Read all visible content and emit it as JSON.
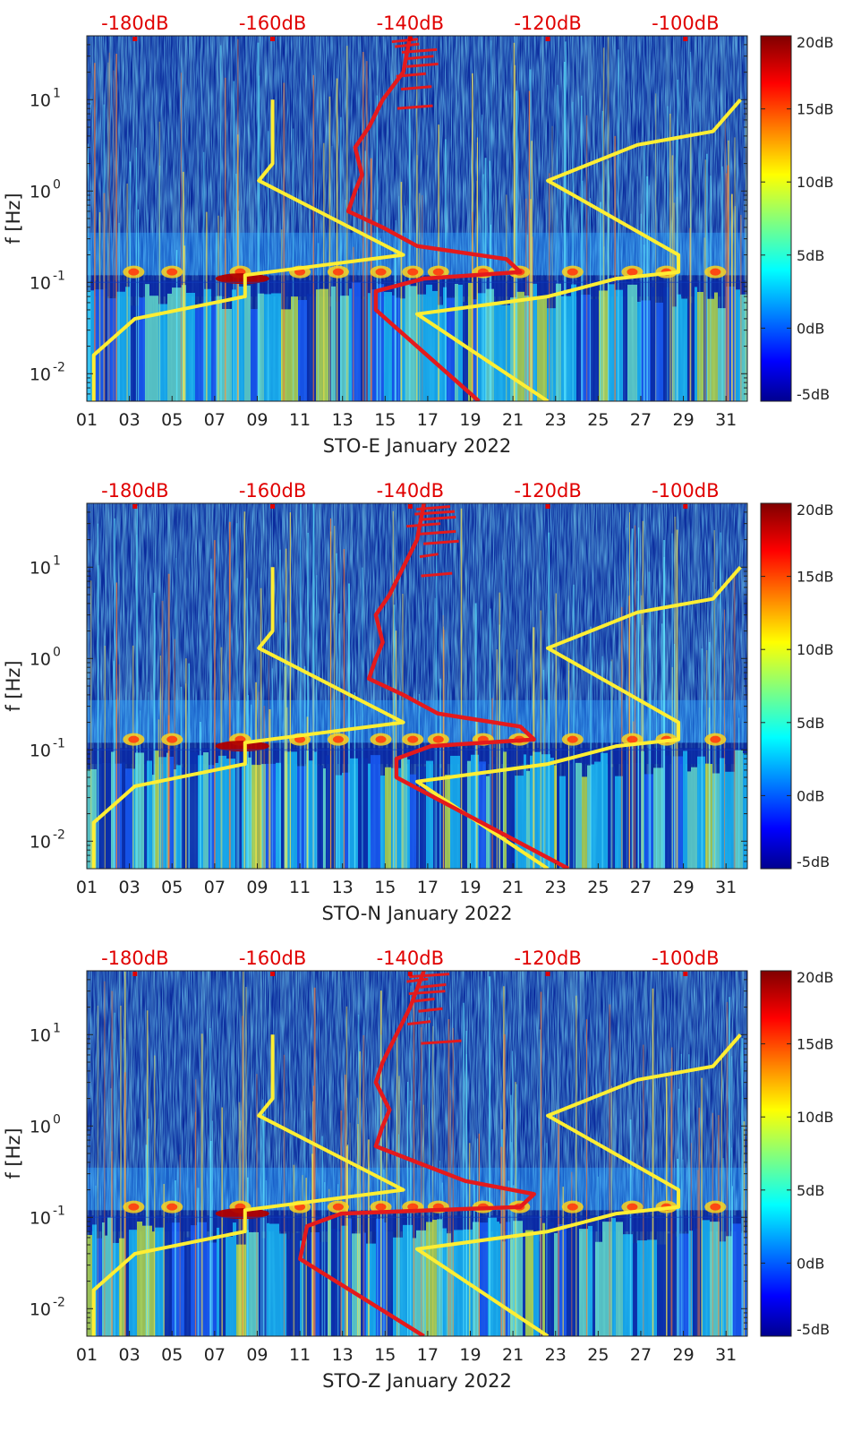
{
  "figure": {
    "ylabel": "f [Hz]",
    "colors": {
      "psd_curve": "#e41a1c",
      "noise_model": "#ffee33",
      "db_axis": "#e00000",
      "background": "#0a2a9c"
    }
  },
  "chart_data": [
    {
      "type": "heatmap",
      "title": "STO-E January 2022",
      "xlabel": "STO-E January 2022",
      "ylabel": "f [Hz]",
      "x_ticks": [
        "01",
        "03",
        "05",
        "07",
        "09",
        "11",
        "13",
        "15",
        "17",
        "19",
        "21",
        "23",
        "25",
        "27",
        "29",
        "31"
      ],
      "xlim": [
        1,
        32
      ],
      "ylim": [
        0.005,
        50
      ],
      "y_ticks": [
        {
          "value": 0.01,
          "base": "10",
          "exp": "-2"
        },
        {
          "value": 0.1,
          "base": "10",
          "exp": "-1"
        },
        {
          "value": 1,
          "base": "10",
          "exp": "0"
        },
        {
          "value": 10,
          "base": "10",
          "exp": "1"
        }
      ],
      "top_axis": {
        "ticks": [
          "-180dB",
          "-160dB",
          "-140dB",
          "-120dB",
          "-100dB"
        ],
        "values": [
          -180,
          -160,
          -140,
          -120,
          -100
        ],
        "range": [
          -187,
          -91
        ]
      },
      "colorbar": {
        "ticks": [
          "-5dB",
          "0dB",
          "5dB",
          "10dB",
          "15dB",
          "20dB"
        ],
        "values": [
          -5,
          0,
          5,
          10,
          15,
          20
        ]
      },
      "psd_curve": {
        "db": [
          -140,
          -141,
          -144,
          -146,
          -148,
          -147,
          -148,
          -149,
          -144,
          -139,
          -126,
          -124,
          -138,
          -145,
          -145,
          -130
        ],
        "f": [
          50,
          20,
          10,
          5,
          3,
          1.5,
          1,
          0.6,
          0.4,
          0.25,
          0.18,
          0.13,
          0.11,
          0.08,
          0.05,
          0.005
        ]
      },
      "noise_low": {
        "db": [
          -160,
          -160,
          -162,
          -141,
          -164,
          -164,
          -180,
          -186,
          -186
        ],
        "f": [
          10,
          2,
          1.3,
          0.2,
          0.12,
          0.07,
          0.04,
          0.016,
          0.005
        ]
      },
      "noise_high": {
        "db": [
          -92,
          -96,
          -107,
          -120,
          -101,
          -101,
          -110,
          -120,
          -139,
          -120
        ],
        "f": [
          10,
          4.5,
          3.2,
          1.3,
          0.2,
          0.13,
          0.11,
          0.07,
          0.045,
          0.005
        ]
      }
    },
    {
      "type": "heatmap",
      "title": "STO-N January 2022",
      "xlabel": "STO-N January 2022",
      "ylabel": "f [Hz]",
      "x_ticks": [
        "01",
        "03",
        "05",
        "07",
        "09",
        "11",
        "13",
        "15",
        "17",
        "19",
        "21",
        "23",
        "25",
        "27",
        "29",
        "31"
      ],
      "xlim": [
        1,
        32
      ],
      "ylim": [
        0.005,
        50
      ],
      "y_ticks": [
        {
          "value": 0.01,
          "base": "10",
          "exp": "-2"
        },
        {
          "value": 0.1,
          "base": "10",
          "exp": "-1"
        },
        {
          "value": 1,
          "base": "10",
          "exp": "0"
        },
        {
          "value": 10,
          "base": "10",
          "exp": "1"
        }
      ],
      "top_axis": {
        "ticks": [
          "-180dB",
          "-160dB",
          "-140dB",
          "-120dB",
          "-100dB"
        ],
        "values": [
          -180,
          -160,
          -140,
          -120,
          -100
        ],
        "range": [
          -187,
          -91
        ]
      },
      "colorbar": {
        "ticks": [
          "-5dB",
          "0dB",
          "5dB",
          "10dB",
          "15dB",
          "20dB"
        ],
        "values": [
          -5,
          0,
          5,
          10,
          15,
          20
        ]
      },
      "psd_curve": {
        "db": [
          -138,
          -139,
          -141,
          -143,
          -145,
          -144,
          -145,
          -146,
          -141,
          -136,
          -124,
          -122,
          -137,
          -142,
          -142,
          -117
        ],
        "f": [
          50,
          20,
          10,
          5,
          3,
          1.5,
          1,
          0.6,
          0.4,
          0.25,
          0.18,
          0.13,
          0.11,
          0.08,
          0.05,
          0.005
        ]
      },
      "noise_low": {
        "db": [
          -160,
          -160,
          -162,
          -141,
          -164,
          -164,
          -180,
          -186,
          -186
        ],
        "f": [
          10,
          2,
          1.3,
          0.2,
          0.12,
          0.07,
          0.04,
          0.016,
          0.005
        ]
      },
      "noise_high": {
        "db": [
          -92,
          -96,
          -107,
          -120,
          -101,
          -101,
          -110,
          -120,
          -139,
          -120
        ],
        "f": [
          10,
          4.5,
          3.2,
          1.3,
          0.2,
          0.13,
          0.11,
          0.07,
          0.045,
          0.005
        ]
      }
    },
    {
      "type": "heatmap",
      "title": "STO-Z January 2022",
      "xlabel": "STO-Z January 2022",
      "ylabel": "f [Hz]",
      "x_ticks": [
        "01",
        "03",
        "05",
        "07",
        "09",
        "11",
        "13",
        "15",
        "17",
        "19",
        "21",
        "23",
        "25",
        "27",
        "29",
        "31"
      ],
      "xlim": [
        1,
        32
      ],
      "ylim": [
        0.005,
        50
      ],
      "y_ticks": [
        {
          "value": 0.01,
          "base": "10",
          "exp": "-2"
        },
        {
          "value": 0.1,
          "base": "10",
          "exp": "-1"
        },
        {
          "value": 1,
          "base": "10",
          "exp": "0"
        },
        {
          "value": 10,
          "base": "10",
          "exp": "1"
        }
      ],
      "top_axis": {
        "ticks": [
          "-180dB",
          "-160dB",
          "-140dB",
          "-120dB",
          "-100dB"
        ],
        "values": [
          -180,
          -160,
          -140,
          -120,
          -100
        ],
        "range": [
          -187,
          -91
        ]
      },
      "colorbar": {
        "ticks": [
          "-5dB",
          "0dB",
          "5dB",
          "10dB",
          "15dB",
          "20dB"
        ],
        "values": [
          -5,
          0,
          5,
          10,
          15,
          20
        ]
      },
      "psd_curve": {
        "db": [
          -138,
          -140,
          -142,
          -144,
          -145,
          -143,
          -144,
          -145,
          -139,
          -132,
          -122,
          -124,
          -150,
          -155,
          -156,
          -138
        ],
        "f": [
          50,
          20,
          10,
          5,
          3,
          1.5,
          1,
          0.6,
          0.4,
          0.25,
          0.18,
          0.13,
          0.11,
          0.08,
          0.035,
          0.005
        ]
      },
      "noise_low": {
        "db": [
          -160,
          -160,
          -162,
          -141,
          -164,
          -164,
          -180,
          -186,
          -186
        ],
        "f": [
          10,
          2,
          1.3,
          0.2,
          0.12,
          0.07,
          0.04,
          0.016,
          0.005
        ]
      },
      "noise_high": {
        "db": [
          -92,
          -96,
          -107,
          -120,
          -101,
          -101,
          -110,
          -120,
          -139,
          -120
        ],
        "f": [
          10,
          4.5,
          3.2,
          1.3,
          0.2,
          0.13,
          0.11,
          0.07,
          0.045,
          0.005
        ]
      }
    }
  ]
}
